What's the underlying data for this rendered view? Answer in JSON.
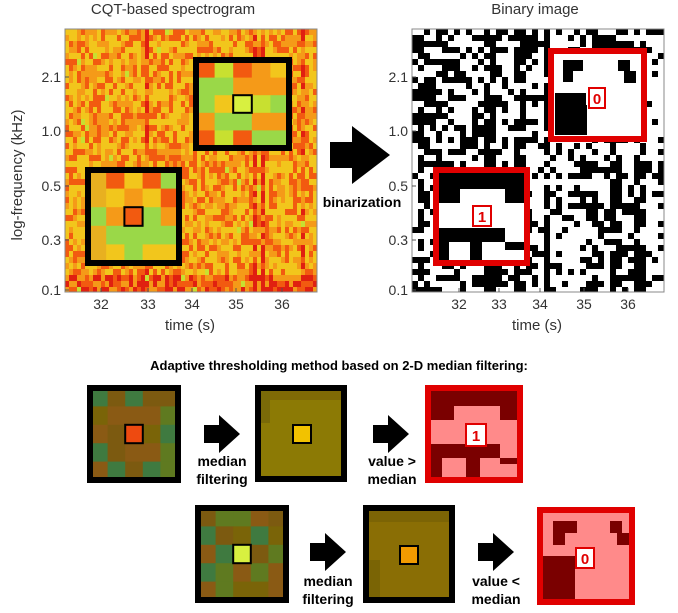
{
  "spectrogram": {
    "title": "CQT-based spectrogram",
    "ylabel": "log-frequency (kHz)",
    "xlabel": "time (s)",
    "yticks": [
      "2.1",
      "1.0",
      "0.5",
      "0.3",
      "0.1"
    ],
    "xticks": [
      "32",
      "33",
      "34",
      "35",
      "36"
    ]
  },
  "binary": {
    "title": "Binary image",
    "xlabel": "time (s)",
    "yticks": [
      "2.1",
      "1.0",
      "0.5",
      "0.3",
      "0.1"
    ],
    "xticks": [
      "32",
      "33",
      "34",
      "35",
      "36"
    ],
    "bit_top": "0",
    "bit_bottom": "1"
  },
  "arrow_label": "binarization",
  "method_title": "Adaptive thresholding method based on 2-D median filtering:",
  "row1": {
    "step1": [
      "median",
      "filtering"
    ],
    "step2": [
      "value >",
      "median"
    ],
    "bit": "1"
  },
  "row2": {
    "step1": [
      "median",
      "filtering"
    ],
    "step2": [
      "value <",
      "median"
    ],
    "bit": "0"
  },
  "colors": {
    "frame": "#000000",
    "red_frame": "#e00000",
    "pink": "#ff8a8a",
    "dark_red": "#7a0000",
    "olive": "#8c7a05"
  }
}
